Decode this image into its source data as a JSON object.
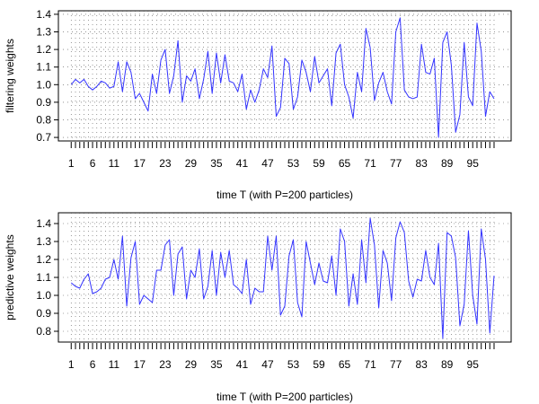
{
  "chart_data": [
    {
      "type": "line",
      "xlabel": "time T (with P=200 particles)",
      "ylabel": "filtering weights",
      "x_tick_labels": [
        "1",
        "6",
        "11",
        "17",
        "23",
        "29",
        "35",
        "41",
        "47",
        "53",
        "59",
        "65",
        "71",
        "77",
        "83",
        "89",
        "95"
      ],
      "x_tick_values": [
        1,
        6,
        11,
        17,
        23,
        29,
        35,
        41,
        47,
        53,
        59,
        65,
        71,
        77,
        83,
        89,
        95
      ],
      "y_ticks": [
        0.7,
        0.8,
        0.9,
        1.0,
        1.1,
        1.2,
        1.3,
        1.4
      ],
      "y_tick_labels": [
        "0.7",
        "0.8",
        "0.9",
        "1.0",
        "1.1",
        "1.2",
        "1.3",
        "1.4"
      ],
      "xlim": [
        -2,
        104
      ],
      "ylim": [
        0.68,
        1.42
      ],
      "grid": "dotted",
      "line_color": "#3333ff",
      "x": [
        1,
        2,
        3,
        4,
        5,
        6,
        7,
        8,
        9,
        10,
        11,
        12,
        13,
        14,
        15,
        16,
        17,
        18,
        19,
        20,
        21,
        22,
        23,
        24,
        25,
        26,
        27,
        28,
        29,
        30,
        31,
        32,
        33,
        34,
        35,
        36,
        37,
        38,
        39,
        40,
        41,
        42,
        43,
        44,
        45,
        46,
        47,
        48,
        49,
        50,
        51,
        52,
        53,
        54,
        55,
        56,
        57,
        58,
        59,
        60,
        61,
        62,
        63,
        64,
        65,
        66,
        67,
        68,
        69,
        70,
        71,
        72,
        73,
        74,
        75,
        76,
        77,
        78,
        79,
        80,
        81,
        82,
        83,
        84,
        85,
        86,
        87,
        88,
        89,
        90,
        91,
        92,
        93,
        94,
        95,
        96,
        97,
        98,
        99,
        100
      ],
      "values": [
        1.0,
        1.03,
        1.01,
        1.03,
        0.99,
        0.97,
        0.99,
        1.02,
        1.01,
        0.98,
        0.99,
        1.13,
        0.96,
        1.13,
        1.07,
        0.92,
        0.95,
        0.9,
        0.85,
        1.06,
        0.95,
        1.14,
        1.2,
        0.95,
        1.05,
        1.25,
        0.9,
        1.05,
        1.02,
        1.09,
        0.92,
        1.03,
        1.19,
        0.95,
        1.18,
        1.01,
        1.17,
        1.02,
        1.01,
        0.96,
        1.06,
        0.86,
        0.97,
        0.9,
        0.97,
        1.09,
        1.04,
        1.22,
        0.82,
        0.87,
        1.15,
        1.12,
        0.86,
        0.93,
        1.14,
        1.07,
        0.96,
        1.16,
        1.01,
        1.05,
        1.09,
        0.88,
        1.18,
        1.23,
        1.0,
        0.93,
        0.81,
        1.07,
        0.96,
        1.32,
        1.21,
        0.91,
        1.01,
        1.07,
        0.96,
        0.89,
        1.3,
        1.38,
        0.97,
        0.93,
        0.92,
        0.93,
        1.23,
        1.07,
        1.06,
        1.15,
        0.7,
        1.24,
        1.3,
        1.11,
        0.73,
        0.83,
        1.24,
        0.93,
        0.88,
        1.35,
        1.19,
        0.82,
        0.96,
        0.92
      ]
    },
    {
      "type": "line",
      "xlabel": "time T (with P=200 particles)",
      "ylabel": "predictive weights",
      "x_tick_labels": [
        "1",
        "6",
        "11",
        "17",
        "23",
        "29",
        "35",
        "41",
        "47",
        "53",
        "59",
        "65",
        "71",
        "77",
        "83",
        "89",
        "95"
      ],
      "x_tick_values": [
        1,
        6,
        11,
        17,
        23,
        29,
        35,
        41,
        47,
        53,
        59,
        65,
        71,
        77,
        83,
        89,
        95
      ],
      "y_ticks": [
        0.8,
        0.9,
        1.0,
        1.1,
        1.2,
        1.3,
        1.4
      ],
      "y_tick_labels": [
        "0.8",
        "0.9",
        "1.0",
        "1.1",
        "1.2",
        "1.3",
        "1.4"
      ],
      "xlim": [
        -2,
        104
      ],
      "ylim": [
        0.74,
        1.46
      ],
      "grid": "dotted",
      "line_color": "#3333ff",
      "x": [
        1,
        2,
        3,
        4,
        5,
        6,
        7,
        8,
        9,
        10,
        11,
        12,
        13,
        14,
        15,
        16,
        17,
        18,
        19,
        20,
        21,
        22,
        23,
        24,
        25,
        26,
        27,
        28,
        29,
        30,
        31,
        32,
        33,
        34,
        35,
        36,
        37,
        38,
        39,
        40,
        41,
        42,
        43,
        44,
        45,
        46,
        47,
        48,
        49,
        50,
        51,
        52,
        53,
        54,
        55,
        56,
        57,
        58,
        59,
        60,
        61,
        62,
        63,
        64,
        65,
        66,
        67,
        68,
        69,
        70,
        71,
        72,
        73,
        74,
        75,
        76,
        77,
        78,
        79,
        80,
        81,
        82,
        83,
        84,
        85,
        86,
        87,
        88,
        89,
        90,
        91,
        92,
        93,
        94,
        95,
        96,
        97,
        98,
        99,
        100
      ],
      "values": [
        1.07,
        1.05,
        1.04,
        1.09,
        1.12,
        1.01,
        1.02,
        1.04,
        1.09,
        1.1,
        1.2,
        1.09,
        1.33,
        0.94,
        1.21,
        1.3,
        0.95,
        1.0,
        0.98,
        0.96,
        1.14,
        1.14,
        1.28,
        1.31,
        1.0,
        1.23,
        1.27,
        0.98,
        1.14,
        1.1,
        1.26,
        0.98,
        1.05,
        1.25,
        1.0,
        1.24,
        1.1,
        1.25,
        1.06,
        1.04,
        1.01,
        1.2,
        0.95,
        1.04,
        1.02,
        1.02,
        1.33,
        1.14,
        1.33,
        0.89,
        0.94,
        1.22,
        1.31,
        0.96,
        0.88,
        1.3,
        1.18,
        1.06,
        1.18,
        1.08,
        1.07,
        1.22,
        1.0,
        1.37,
        1.3,
        0.94,
        1.12,
        0.95,
        1.31,
        1.07,
        1.43,
        1.28,
        0.93,
        1.25,
        1.18,
        0.97,
        1.32,
        1.41,
        1.35,
        1.08,
        0.99,
        1.09,
        1.08,
        1.25,
        1.1,
        1.06,
        1.29,
        0.76,
        1.35,
        1.33,
        1.21,
        0.83,
        0.95,
        1.36,
        1.0,
        0.84,
        1.37,
        1.2,
        0.79,
        1.11
      ]
    }
  ]
}
